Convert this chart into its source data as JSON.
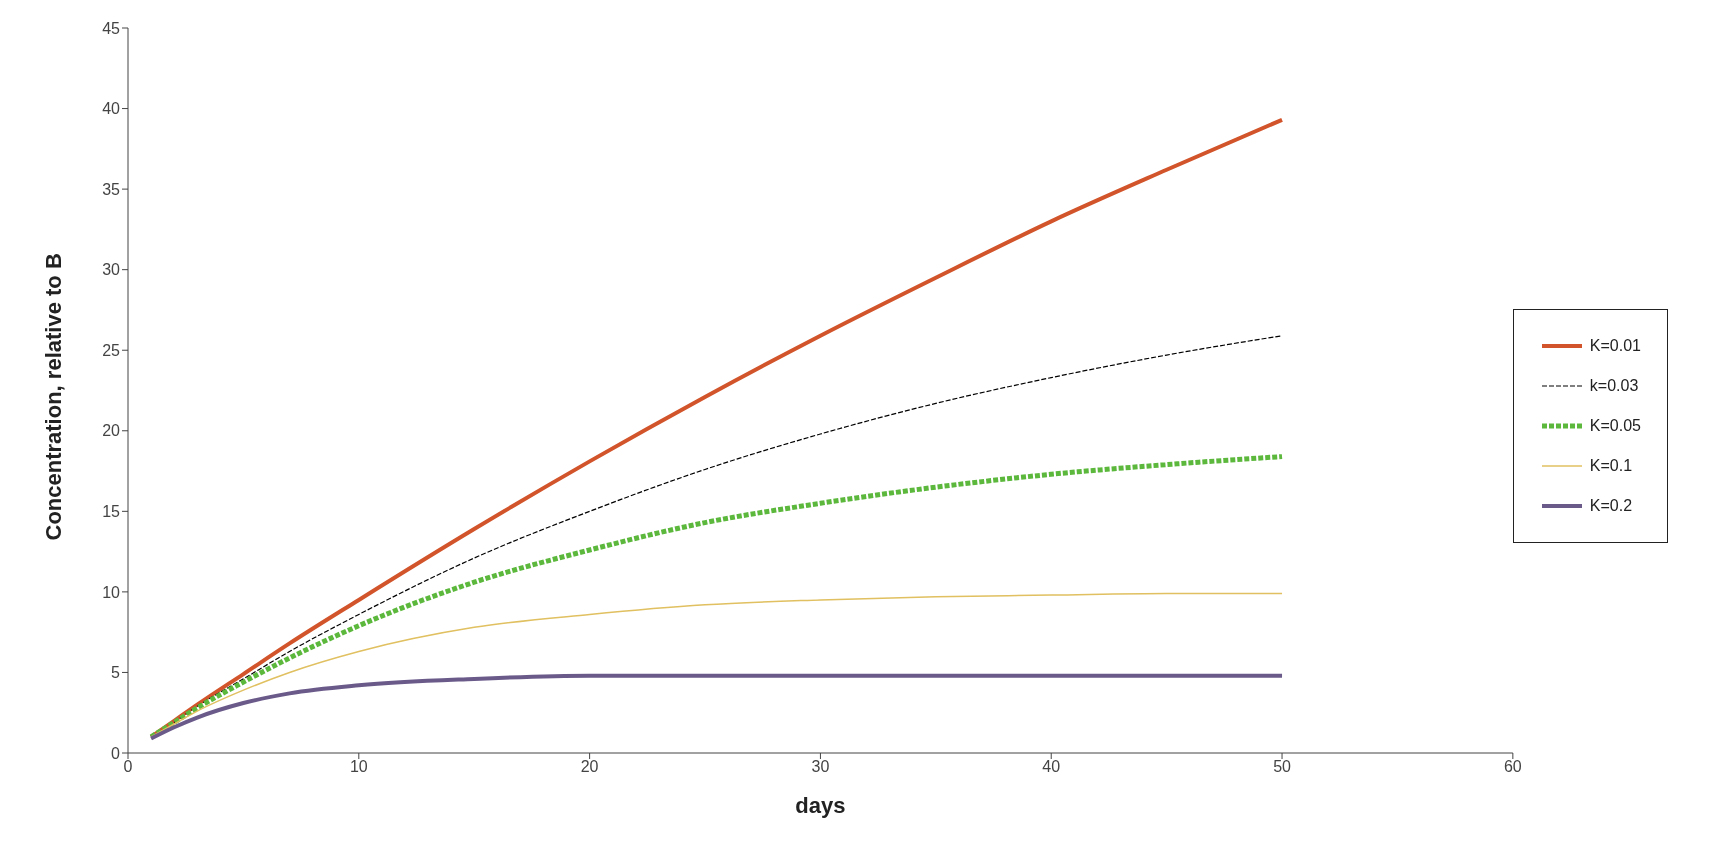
{
  "chart_data": {
    "type": "line",
    "xlabel": "days",
    "ylabel": "Concentration, relative to B",
    "xlim": [
      0,
      60
    ],
    "xticks": [
      0,
      10,
      20,
      30,
      40,
      50,
      60
    ],
    "ylim": [
      0,
      45
    ],
    "yticks": [
      0,
      5,
      10,
      15,
      20,
      25,
      30,
      35,
      40,
      45
    ],
    "grid": false,
    "legend": "right",
    "marker": "none",
    "x": [
      1,
      2,
      3,
      5,
      7,
      10,
      15,
      20,
      25,
      30,
      35,
      40,
      45,
      50
    ],
    "series": [
      {
        "name": "K=0.01",
        "color": "#d2542a",
        "line_style": "solid",
        "values": [
          1.0,
          2.0,
          3.0,
          4.9,
          6.8,
          9.5,
          13.9,
          18.1,
          22.1,
          25.9,
          29.5,
          33.0,
          36.2,
          39.3
        ]
      },
      {
        "name": "k=0.03",
        "color": "#000000",
        "line_style": "dashed",
        "values": [
          null,
          1.9,
          2.9,
          4.6,
          6.3,
          8.6,
          12.1,
          15.0,
          17.6,
          19.8,
          21.7,
          23.3,
          24.7,
          25.9
        ]
      },
      {
        "name": "K=0.05",
        "color": "#5cb83c",
        "line_style": "dashed",
        "values": [
          1.0,
          1.9,
          2.8,
          4.4,
          5.9,
          7.9,
          10.6,
          12.6,
          14.3,
          15.5,
          16.5,
          17.3,
          17.9,
          18.4
        ]
      },
      {
        "name": "K=0.1",
        "color": "#e0c060",
        "line_style": "solid",
        "values": [
          1.0,
          1.8,
          2.6,
          3.9,
          5.0,
          6.3,
          7.8,
          8.6,
          9.2,
          9.5,
          9.7,
          9.8,
          9.9,
          9.9
        ]
      },
      {
        "name": "K=0.2",
        "color": "#6a5a8a",
        "line_style": "solid",
        "values": [
          0.9,
          1.6,
          2.2,
          3.1,
          3.7,
          4.2,
          4.6,
          4.8,
          4.8,
          4.8,
          4.8,
          4.8,
          4.8,
          4.8
        ]
      }
    ]
  }
}
